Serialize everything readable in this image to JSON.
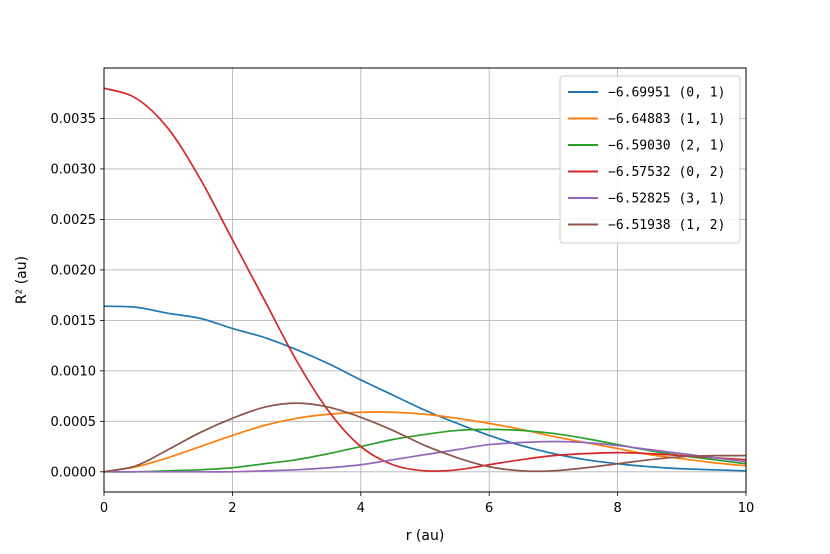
{
  "chart_data": {
    "type": "line",
    "xlabel": "r (au)",
    "ylabel": "R² (au)",
    "xlim": [
      0,
      10
    ],
    "ylim": [
      -0.0002,
      0.004
    ],
    "xticks": [
      "0",
      "2",
      "4",
      "6",
      "8",
      "10"
    ],
    "yticks": [
      "0.0000",
      "0.0005",
      "0.0010",
      "0.0015",
      "0.0020",
      "0.0025",
      "0.0030",
      "0.0035"
    ],
    "grid": true,
    "legend_position": "top-right",
    "x": [
      0,
      0.5,
      1,
      1.5,
      2,
      2.5,
      3,
      3.5,
      4,
      4.5,
      5,
      5.5,
      6,
      6.5,
      7,
      7.5,
      8,
      8.5,
      9,
      9.5,
      10
    ],
    "series": [
      {
        "name": "−6.69951 (0, 1)",
        "color": "#1f77b4",
        "values": [
          0.00164,
          0.00163,
          0.00157,
          0.00152,
          0.00142,
          0.00133,
          0.00121,
          0.00107,
          0.00091,
          0.00076,
          0.00061,
          0.00048,
          0.00036,
          0.00026,
          0.00018,
          0.00012,
          8e-05,
          5e-05,
          3e-05,
          2e-05,
          1e-05
        ]
      },
      {
        "name": "−6.64883 (1, 1)",
        "color": "#ff7f0e",
        "values": [
          0,
          5e-05,
          0.00014,
          0.00025,
          0.00036,
          0.00046,
          0.00053,
          0.00057,
          0.00059,
          0.00059,
          0.00057,
          0.00053,
          0.00048,
          0.00042,
          0.00035,
          0.00029,
          0.00023,
          0.00017,
          0.00013,
          9e-05,
          6e-05
        ]
      },
      {
        "name": "−6.59030 (2, 1)",
        "color": "#2ca02c",
        "values": [
          0,
          0,
          1e-05,
          2e-05,
          4e-05,
          8e-05,
          0.00012,
          0.00018,
          0.00025,
          0.00032,
          0.00037,
          0.00041,
          0.00042,
          0.00041,
          0.00038,
          0.00033,
          0.00027,
          0.00021,
          0.00016,
          0.00012,
          8e-05
        ]
      },
      {
        "name": "−6.57532 (0, 2)",
        "color": "#d62728",
        "values": [
          0.0038,
          0.0037,
          0.0034,
          0.0029,
          0.0023,
          0.0017,
          0.0011,
          0.0006,
          0.00025,
          7e-05,
          1e-05,
          2e-05,
          7e-05,
          0.00012,
          0.00016,
          0.00018,
          0.00019,
          0.00018,
          0.00016,
          0.00014,
          0.00012
        ]
      },
      {
        "name": "−6.52825 (3, 1)",
        "color": "#9467bd",
        "values": [
          0,
          0,
          0,
          0,
          0,
          1e-05,
          2e-05,
          4e-05,
          7e-05,
          0.00012,
          0.00017,
          0.00022,
          0.00027,
          0.00029,
          0.0003,
          0.00029,
          0.00026,
          0.00022,
          0.00018,
          0.00014,
          0.0001
        ]
      },
      {
        "name": "−6.51938 (1, 2)",
        "color": "#8c564b",
        "values": [
          0,
          6e-05,
          0.00022,
          0.00039,
          0.00053,
          0.00064,
          0.00068,
          0.00064,
          0.00054,
          0.00041,
          0.00026,
          0.00014,
          5e-05,
          1e-05,
          1e-05,
          4e-05,
          8e-05,
          0.00012,
          0.00015,
          0.00016,
          0.00016
        ]
      }
    ]
  }
}
